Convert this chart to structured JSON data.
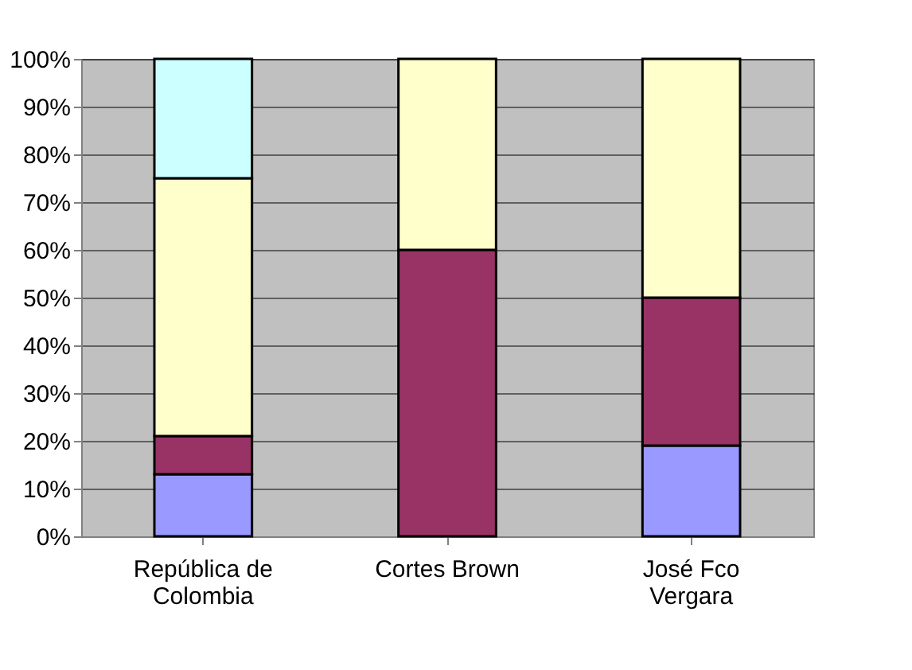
{
  "chart_data": {
    "type": "bar",
    "stacked": true,
    "categories": [
      "República de Colombia",
      "Cortes Brown",
      "José Fco Vergara"
    ],
    "series": [
      {
        "color": "#9999ff",
        "values": [
          13,
          null,
          19
        ]
      },
      {
        "color": "#993366",
        "values": [
          8,
          60,
          31
        ]
      },
      {
        "color": "#ffffcc",
        "values": [
          54,
          40,
          50
        ]
      },
      {
        "color": "#ccffff",
        "values": [
          25,
          null,
          null
        ]
      }
    ],
    "ylim": [
      0,
      100
    ],
    "yticks": [
      {
        "value": 0,
        "label": "0%"
      },
      {
        "value": 10,
        "label": "10%"
      },
      {
        "value": 20,
        "label": "20%"
      },
      {
        "value": 30,
        "label": "30%"
      },
      {
        "value": 40,
        "label": "40%"
      },
      {
        "value": 50,
        "label": "50%"
      },
      {
        "value": 60,
        "label": "60%"
      },
      {
        "value": 70,
        "label": "70%"
      },
      {
        "value": 80,
        "label": "80%"
      },
      {
        "value": 90,
        "label": "90%"
      },
      {
        "value": 100,
        "label": "100%"
      }
    ],
    "grid": "y",
    "legend": false
  }
}
